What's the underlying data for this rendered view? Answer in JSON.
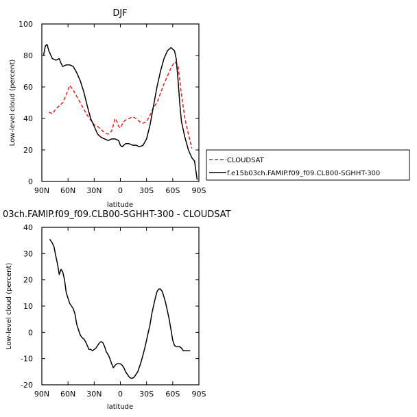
{
  "chart_data": [
    {
      "type": "line",
      "title": "DJF",
      "xlabel": "latitude",
      "ylabel": "Low-level cloud (percent)",
      "xlim": [
        90,
        -90
      ],
      "ylim": [
        0,
        100
      ],
      "x_ticks": [
        90,
        60,
        30,
        0,
        -30,
        -60,
        -90
      ],
      "x_tick_labels": [
        "90N",
        "60N",
        "30N",
        "0",
        "30S",
        "60S",
        "90S"
      ],
      "y_ticks": [
        0,
        20,
        40,
        60,
        80,
        100
      ],
      "y_tick_labels": [
        "0",
        "20",
        "40",
        "60",
        "80",
        "100"
      ],
      "legend_position": "right",
      "series": [
        {
          "name": "CLOUDSAT",
          "color": "#e41a1c",
          "style": "dashed",
          "x": [
            82,
            78,
            74,
            70,
            66,
            62,
            58,
            54,
            50,
            46,
            42,
            38,
            34,
            30,
            26,
            22,
            18,
            14,
            10,
            6,
            4,
            2,
            0,
            -2,
            -4,
            -6,
            -10,
            -14,
            -18,
            -22,
            -26,
            -30,
            -34,
            -38,
            -42,
            -46,
            -50,
            -54,
            -58,
            -62,
            -66,
            -70,
            -74,
            -78,
            -82
          ],
          "values": [
            44,
            43,
            46,
            48,
            50,
            55,
            61,
            58,
            54,
            50,
            46,
            42,
            39,
            36,
            35,
            33,
            31,
            30,
            32,
            40,
            38,
            35,
            34,
            36,
            38,
            39,
            40,
            41,
            40,
            38,
            37,
            38,
            42,
            47,
            50,
            56,
            62,
            67,
            72,
            76,
            74,
            55,
            40,
            30,
            21
          ]
        },
        {
          "name": "f.e15b03ch.FAMIP.f09_f09.CLB00-SGHHT-300",
          "color": "#000000",
          "style": "solid",
          "x": [
            88,
            86,
            84,
            82,
            78,
            74,
            70,
            68,
            66,
            62,
            58,
            54,
            50,
            46,
            42,
            38,
            34,
            30,
            26,
            22,
            18,
            14,
            10,
            6,
            2,
            0,
            -2,
            -6,
            -10,
            -14,
            -18,
            -22,
            -26,
            -30,
            -34,
            -38,
            -42,
            -46,
            -50,
            -54,
            -56,
            -58,
            -60,
            -62,
            -64,
            -66,
            -68,
            -70,
            -74,
            -78,
            -82,
            -85,
            -88
          ],
          "values": [
            80,
            86,
            87,
            83,
            78,
            77,
            78,
            75,
            73,
            74,
            74,
            73,
            69,
            64,
            57,
            48,
            40,
            35,
            30,
            28,
            27,
            26,
            27,
            27,
            26,
            23,
            22,
            24,
            24,
            23,
            23,
            22,
            23,
            27,
            36,
            48,
            60,
            70,
            78,
            83,
            84,
            85,
            84,
            83,
            78,
            65,
            50,
            38,
            28,
            20,
            15,
            13,
            1
          ]
        }
      ]
    },
    {
      "type": "line",
      "title": "03ch.FAMIP.f09_f09.CLB00-SGHHT-300 - CLOUDSAT",
      "xlabel": "latitude",
      "ylabel": "Low-level cloud (percent)",
      "xlim": [
        90,
        -90
      ],
      "ylim": [
        -20,
        40
      ],
      "x_ticks": [
        90,
        60,
        30,
        0,
        -30,
        -60,
        -90
      ],
      "x_tick_labels": [
        "90N",
        "60N",
        "30N",
        "0",
        "30S",
        "60S",
        "90S"
      ],
      "y_ticks": [
        -20,
        -10,
        0,
        10,
        20,
        30,
        40
      ],
      "y_tick_labels": [
        "-20",
        "-10",
        "0",
        "10",
        "20",
        "30",
        "40"
      ],
      "series": [
        {
          "color": "#000000",
          "style": "solid",
          "x": [
            81,
            78,
            76,
            74,
            72,
            70,
            68,
            66,
            64,
            62,
            60,
            58,
            56,
            54,
            52,
            50,
            48,
            46,
            44,
            42,
            40,
            38,
            36,
            34,
            32,
            30,
            28,
            26,
            24,
            22,
            20,
            18,
            16,
            14,
            12,
            10,
            8,
            6,
            4,
            2,
            0,
            -2,
            -4,
            -6,
            -8,
            -10,
            -12,
            -14,
            -16,
            -18,
            -20,
            -22,
            -24,
            -26,
            -28,
            -30,
            -32,
            -34,
            -36,
            -38,
            -40,
            -42,
            -44,
            -46,
            -48,
            -50,
            -52,
            -54,
            -56,
            -58,
            -60,
            -62,
            -64,
            -66,
            -68,
            -70,
            -72,
            -74,
            -76,
            -78,
            -80
          ],
          "values": [
            35.5,
            34,
            32.5,
            29,
            26,
            22,
            24,
            23,
            20,
            15,
            13,
            11,
            10,
            9,
            7,
            3,
            1,
            -1,
            -2,
            -2.5,
            -3.5,
            -5,
            -6.5,
            -6.5,
            -7,
            -6.5,
            -6,
            -5,
            -4,
            -3.5,
            -4,
            -5.5,
            -7.5,
            -8.5,
            -10,
            -12,
            -13.5,
            -12.5,
            -12,
            -12,
            -12,
            -12.5,
            -13.5,
            -15,
            -16,
            -17,
            -17.5,
            -17.5,
            -17,
            -16,
            -15,
            -13,
            -11,
            -8.5,
            -6,
            -3,
            0,
            3,
            7,
            10,
            13,
            15.5,
            16.5,
            16.5,
            15.5,
            13.5,
            11,
            8,
            5,
            1,
            -3,
            -5,
            -5.5,
            -5.5,
            -5.5,
            -6,
            -7,
            -7,
            -7,
            -7,
            -7
          ]
        }
      ]
    }
  ]
}
